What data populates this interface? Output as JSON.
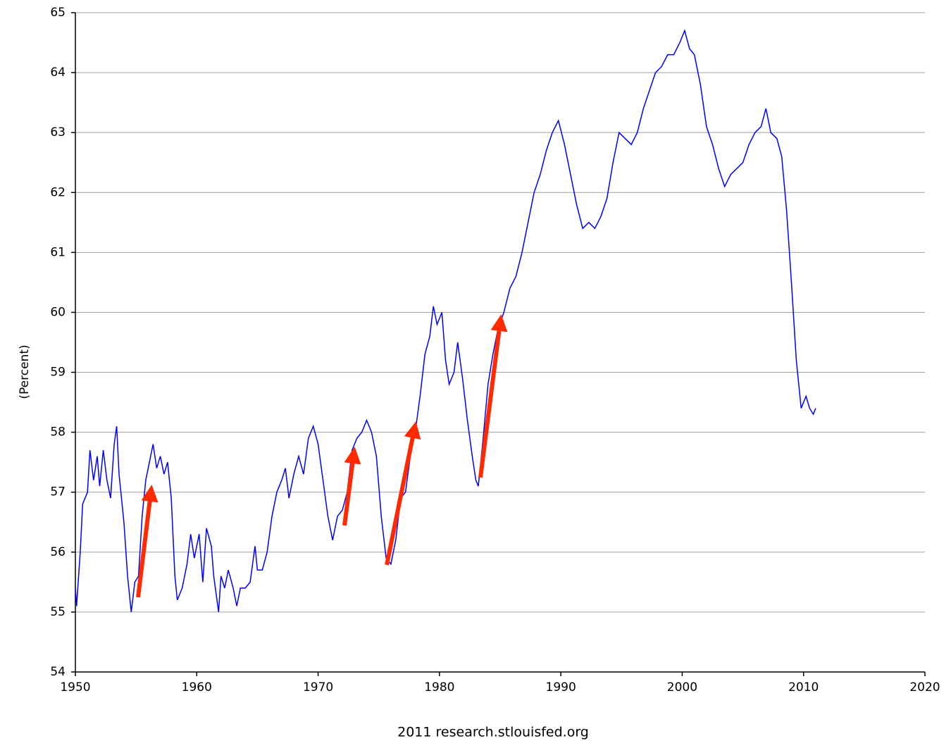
{
  "chart_data": {
    "type": "line",
    "y_label": "(Percent)",
    "footer": "2011 research.stlouisfed.org",
    "xlim": [
      1950,
      2020
    ],
    "xticks": [
      1950,
      1960,
      1970,
      1980,
      1990,
      2000,
      2010,
      2020
    ],
    "ylim": [
      54,
      65
    ],
    "yticks": [
      54,
      55,
      56,
      57,
      58,
      59,
      60,
      61,
      62,
      63,
      64,
      65
    ],
    "grid": true,
    "series": [
      {
        "color": "#0000ff",
        "x": [
          1950.0,
          1950.1,
          1950.4,
          1950.6,
          1951.0,
          1951.2,
          1951.5,
          1951.8,
          1952.0,
          1952.3,
          1952.6,
          1952.9,
          1953.2,
          1953.4,
          1953.6,
          1954.0,
          1954.3,
          1954.6,
          1954.9,
          1955.2,
          1955.5,
          1955.8,
          1956.2,
          1956.4,
          1956.7,
          1957.0,
          1957.3,
          1957.6,
          1957.9,
          1958.2,
          1958.4,
          1958.8,
          1959.2,
          1959.5,
          1959.8,
          1960.2,
          1960.5,
          1960.8,
          1961.2,
          1961.4,
          1961.8,
          1962.0,
          1962.3,
          1962.6,
          1963.0,
          1963.3,
          1963.6,
          1964.0,
          1964.4,
          1964.8,
          1965.0,
          1965.4,
          1965.8,
          1966.2,
          1966.6,
          1967.0,
          1967.3,
          1967.6,
          1968.0,
          1968.4,
          1968.8,
          1969.2,
          1969.6,
          1970.0,
          1970.4,
          1970.8,
          1971.2,
          1971.6,
          1972.0,
          1972.4,
          1972.8,
          1973.2,
          1973.6,
          1974.0,
          1974.4,
          1974.8,
          1975.2,
          1975.6,
          1976.0,
          1976.4,
          1976.8,
          1977.2,
          1977.6,
          1978.0,
          1978.4,
          1978.8,
          1979.2,
          1979.5,
          1979.8,
          1980.2,
          1980.5,
          1980.8,
          1981.2,
          1981.5,
          1981.9,
          1982.3,
          1982.7,
          1983.0,
          1983.2,
          1983.6,
          1984.0,
          1984.4,
          1984.8,
          1985.3,
          1985.8,
          1986.3,
          1986.8,
          1987.3,
          1987.8,
          1988.3,
          1988.8,
          1989.3,
          1989.8,
          1990.3,
          1990.8,
          1991.3,
          1991.8,
          1992.3,
          1992.8,
          1993.3,
          1993.8,
          1994.3,
          1994.8,
          1995.3,
          1995.8,
          1996.3,
          1996.8,
          1997.3,
          1997.8,
          1998.3,
          1998.8,
          1999.3,
          1999.8,
          2000.2,
          2000.6,
          2001.0,
          2001.5,
          2002.0,
          2002.5,
          2003.0,
          2003.5,
          2004.0,
          2004.5,
          2005.0,
          2005.5,
          2006.0,
          2006.5,
          2006.9,
          2007.3,
          2007.8,
          2008.2,
          2008.6,
          2009.0,
          2009.4,
          2009.8,
          2010.2,
          2010.5,
          2010.8,
          2011.0
        ],
        "values": [
          55.4,
          55.1,
          56.0,
          56.8,
          57.0,
          57.7,
          57.2,
          57.6,
          57.1,
          57.7,
          57.2,
          56.9,
          57.8,
          58.1,
          57.3,
          56.5,
          55.6,
          55.0,
          55.5,
          55.6,
          56.6,
          57.2,
          57.6,
          57.8,
          57.4,
          57.6,
          57.3,
          57.5,
          56.9,
          55.6,
          55.2,
          55.4,
          55.8,
          56.3,
          55.9,
          56.3,
          55.5,
          56.4,
          56.1,
          55.6,
          55.0,
          55.6,
          55.4,
          55.7,
          55.4,
          55.1,
          55.4,
          55.4,
          55.5,
          56.1,
          55.7,
          55.7,
          56.0,
          56.6,
          57.0,
          57.2,
          57.4,
          56.9,
          57.3,
          57.6,
          57.3,
          57.9,
          58.1,
          57.8,
          57.2,
          56.6,
          56.2,
          56.6,
          56.7,
          57.0,
          57.7,
          57.9,
          58.0,
          58.2,
          58.0,
          57.6,
          56.6,
          55.9,
          55.8,
          56.2,
          56.9,
          57.0,
          57.6,
          58.0,
          58.6,
          59.3,
          59.6,
          60.1,
          59.8,
          60.0,
          59.2,
          58.8,
          59.0,
          59.5,
          58.9,
          58.2,
          57.6,
          57.2,
          57.1,
          57.9,
          58.8,
          59.3,
          59.7,
          60.0,
          60.4,
          60.6,
          61.0,
          61.5,
          62.0,
          62.3,
          62.7,
          63.0,
          63.2,
          62.8,
          62.3,
          61.8,
          61.4,
          61.5,
          61.4,
          61.6,
          61.9,
          62.5,
          63.0,
          62.9,
          62.8,
          63.0,
          63.4,
          63.7,
          64.0,
          64.1,
          64.3,
          64.3,
          64.5,
          64.7,
          64.4,
          64.3,
          63.8,
          63.1,
          62.8,
          62.4,
          62.1,
          62.3,
          62.4,
          62.5,
          62.8,
          63.0,
          63.1,
          63.4,
          63.0,
          62.9,
          62.6,
          61.7,
          60.5,
          59.2,
          58.4,
          58.6,
          58.4,
          58.3,
          58.4
        ]
      }
    ]
  }
}
